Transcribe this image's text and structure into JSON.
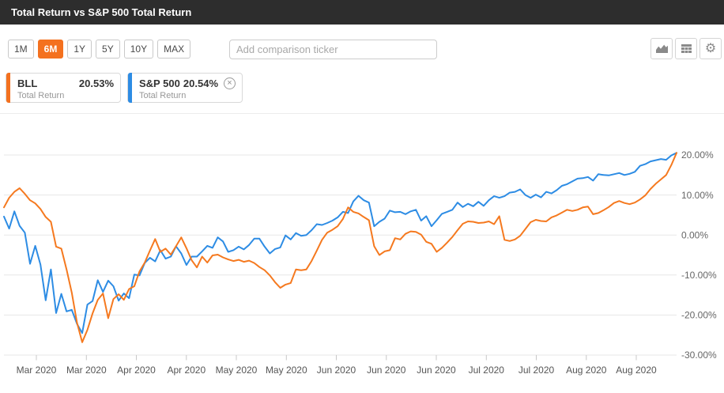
{
  "header": {
    "title": "Total Return vs S&P 500 Total Return"
  },
  "toolbar": {
    "range_buttons": [
      {
        "label": "1M",
        "active": false
      },
      {
        "label": "6M",
        "active": true
      },
      {
        "label": "1Y",
        "active": false
      },
      {
        "label": "5Y",
        "active": false
      },
      {
        "label": "10Y",
        "active": false
      },
      {
        "label": "MAX",
        "active": false
      }
    ],
    "comparison_input": {
      "placeholder": "Add comparison ticker",
      "value": ""
    },
    "icon_buttons": [
      {
        "name": "chart-type",
        "icon": "area-chart-icon"
      },
      {
        "name": "data-table",
        "icon": "table-icon"
      },
      {
        "name": "settings",
        "icon": "gear-icon"
      }
    ]
  },
  "legend": {
    "series": [
      {
        "ticker": "BLL",
        "value": "20.53%",
        "sublabel": "Total Return",
        "color": "#f4711f",
        "removable": false
      },
      {
        "ticker": "S&P 500",
        "value": "20.54%",
        "sublabel": "Total Return",
        "color": "#2d8ce4",
        "removable": true
      }
    ],
    "remove_icon_glyph": "×"
  },
  "chart_data": {
    "type": "line",
    "title": "Total Return vs S&P 500 Total Return",
    "x_labels": [
      "Mar 2020",
      "Mar 2020",
      "Apr 2020",
      "Apr 2020",
      "May 2020",
      "May 2020",
      "Jun 2020",
      "Jun 2020",
      "Jun 2020",
      "Jul 2020",
      "Jul 2020",
      "Aug 2020",
      "Aug 2020"
    ],
    "y_axis": {
      "labels": [
        "20.00%",
        "10.00%",
        "0.00%",
        "-10.00%",
        "-20.00%",
        "-30.00%"
      ],
      "values": [
        20,
        10,
        0,
        -10,
        -20,
        -30
      ],
      "min": -30,
      "max": 20,
      "unit": "%",
      "position": "right"
    },
    "grid": true,
    "legend_position": "top-left-cards",
    "series": [
      {
        "name": "BLL Total Return",
        "color": "#f5791f",
        "end_label": "20.53%",
        "values": [
          6.9,
          9.3,
          10.8,
          11.7,
          10.3,
          8.7,
          7.9,
          6.5,
          4.5,
          3.3,
          -2.9,
          -3.4,
          -8.6,
          -14.4,
          -21.9,
          -26.8,
          -23.7,
          -19.6,
          -16.2,
          -14.6,
          -20.8,
          -16.0,
          -14.8,
          -16.2,
          -13.5,
          -12.8,
          -9.1,
          -6.9,
          -3.9,
          -1.0,
          -4.2,
          -3.4,
          -4.9,
          -2.8,
          -0.6,
          -3.3,
          -6.3,
          -8.1,
          -5.4,
          -6.9,
          -5.1,
          -4.9,
          -5.6,
          -6.1,
          -6.5,
          -6.2,
          -6.7,
          -6.4,
          -7.0,
          -8.0,
          -8.8,
          -10.1,
          -11.8,
          -13.2,
          -12.4,
          -12.0,
          -8.6,
          -8.8,
          -8.6,
          -6.5,
          -3.9,
          -1.2,
          0.6,
          1.3,
          2.2,
          4.0,
          6.9,
          5.8,
          5.4,
          4.5,
          3.7,
          -2.8,
          -5.0,
          -4.1,
          -3.8,
          -0.8,
          -1.1,
          0.3,
          0.9,
          0.8,
          0.1,
          -1.7,
          -2.2,
          -4.2,
          -3.2,
          -1.9,
          -0.5,
          1.2,
          2.8,
          3.4,
          3.3,
          3.0,
          3.1,
          3.4,
          2.7,
          4.7,
          -1.2,
          -1.5,
          -1.1,
          -0.2,
          1.5,
          3.2,
          3.8,
          3.5,
          3.4,
          4.4,
          4.9,
          5.6,
          6.3,
          6.0,
          6.3,
          6.9,
          7.1,
          5.2,
          5.5,
          6.2,
          7.0,
          8.0,
          8.5,
          8.0,
          7.7,
          8.1,
          8.9,
          9.9,
          11.5,
          12.8,
          13.9,
          15.0,
          17.5,
          20.53
        ]
      },
      {
        "name": "S&P 500 Total Return",
        "color": "#2d8ce4",
        "end_label": "20.54%",
        "values": [
          4.6,
          1.6,
          5.9,
          2.3,
          0.6,
          -7.2,
          -2.7,
          -7.4,
          -16.3,
          -8.6,
          -19.5,
          -14.7,
          -19.1,
          -18.7,
          -22.2,
          -24.5,
          -17.4,
          -16.5,
          -11.3,
          -14.2,
          -11.4,
          -12.8,
          -16.4,
          -14.6,
          -15.8,
          -9.9,
          -10.1,
          -7.0,
          -5.7,
          -6.6,
          -3.8,
          -5.9,
          -5.4,
          -2.8,
          -4.6,
          -7.5,
          -5.4,
          -5.4,
          -4.1,
          -2.7,
          -3.2,
          -0.6,
          -1.6,
          -4.2,
          -3.8,
          -2.9,
          -3.6,
          -2.5,
          -0.9,
          -0.9,
          -2.9,
          -4.6,
          -3.5,
          -3.1,
          -0.1,
          -1.1,
          0.5,
          -0.2,
          0.0,
          1.2,
          2.7,
          2.5,
          3.0,
          3.6,
          4.4,
          5.8,
          5.5,
          8.4,
          9.8,
          8.7,
          8.1,
          2.2,
          3.3,
          4.1,
          6.1,
          5.7,
          5.8,
          5.2,
          5.9,
          6.3,
          3.6,
          4.7,
          2.2,
          3.7,
          5.3,
          5.8,
          6.3,
          8.1,
          7.0,
          7.8,
          7.2,
          8.3,
          7.3,
          8.7,
          9.7,
          9.3,
          9.7,
          10.6,
          10.8,
          11.4,
          10.0,
          9.3,
          10.1,
          9.4,
          10.8,
          10.4,
          11.2,
          12.3,
          12.7,
          13.4,
          14.1,
          14.2,
          14.5,
          13.6,
          15.2,
          15.0,
          14.9,
          15.2,
          15.5,
          15.0,
          15.3,
          15.8,
          17.3,
          17.7,
          18.4,
          18.7,
          19.0,
          18.8,
          19.9,
          20.54
        ]
      }
    ]
  },
  "colors": {
    "header_bg": "#2d2d2d",
    "active_range_bg": "#f4711f",
    "grid_line": "#e7e7e7",
    "tick_line": "#c8c8c8",
    "y_label_text": "#666666",
    "x_label_text": "#555555"
  }
}
